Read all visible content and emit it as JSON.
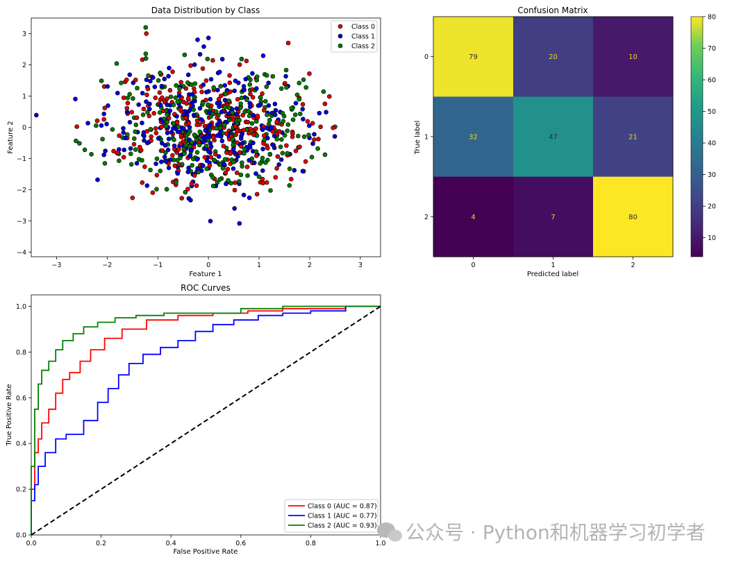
{
  "chart_data": [
    {
      "type": "scatter",
      "title": "Data Distribution by Class",
      "xlabel": "Feature 1",
      "ylabel": "Feature 2",
      "xlim": [
        -3.5,
        3.4
      ],
      "ylim": [
        -4.15,
        3.5
      ],
      "xticks": [
        -3,
        -2,
        -1,
        0,
        1,
        2,
        3
      ],
      "yticks": [
        -4,
        -3,
        -2,
        -1,
        0,
        1,
        2,
        3
      ],
      "legend_position": "top-right",
      "series": [
        {
          "name": "Class 0",
          "color": "#e00000",
          "count": 300
        },
        {
          "name": "Class 1",
          "color": "#0000e0",
          "count": 300
        },
        {
          "name": "Class 2",
          "color": "#007a00",
          "count": 300
        }
      ]
    },
    {
      "type": "heatmap",
      "title": "Confusion Matrix",
      "xlabel": "Predicted label",
      "ylabel": "True label",
      "x_categories": [
        "0",
        "1",
        "2"
      ],
      "y_categories": [
        "0",
        "1",
        "2"
      ],
      "values": [
        [
          79,
          20,
          10
        ],
        [
          32,
          47,
          21
        ],
        [
          4,
          7,
          80
        ]
      ],
      "colorbar_range": [
        4,
        80
      ],
      "colorbar_ticks": [
        10,
        20,
        30,
        40,
        50,
        60,
        70,
        80
      ],
      "colormap": "viridis"
    },
    {
      "type": "line",
      "title": "ROC Curves",
      "xlabel": "False Positive Rate",
      "ylabel": "True Positive Rate",
      "xlim": [
        0,
        1
      ],
      "ylim": [
        0,
        1.05
      ],
      "xticks": [
        0.0,
        0.2,
        0.4,
        0.6,
        0.8,
        1.0
      ],
      "yticks": [
        0.0,
        0.2,
        0.4,
        0.6,
        0.8,
        1.0
      ],
      "legend_position": "lower-right",
      "series": [
        {
          "name": "Class 0 (AUC = 0.87)",
          "color": "#ff0000",
          "x": [
            0,
            0.01,
            0.02,
            0.03,
            0.05,
            0.07,
            0.09,
            0.11,
            0.14,
            0.17,
            0.21,
            0.26,
            0.33,
            0.42,
            0.52,
            0.62,
            0.72,
            0.82,
            0.9,
            1.0
          ],
          "y": [
            0,
            0.2,
            0.36,
            0.42,
            0.49,
            0.55,
            0.62,
            0.68,
            0.71,
            0.76,
            0.81,
            0.86,
            0.9,
            0.94,
            0.96,
            0.97,
            0.98,
            0.99,
            0.99,
            1.0
          ]
        },
        {
          "name": "Class 1 (AUC = 0.77)",
          "color": "#0000ff",
          "x": [
            0,
            0.01,
            0.02,
            0.04,
            0.07,
            0.1,
            0.15,
            0.19,
            0.22,
            0.25,
            0.28,
            0.32,
            0.37,
            0.42,
            0.47,
            0.52,
            0.58,
            0.65,
            0.72,
            0.8,
            0.9,
            1.0
          ],
          "y": [
            0,
            0.15,
            0.22,
            0.3,
            0.36,
            0.42,
            0.44,
            0.5,
            0.58,
            0.64,
            0.7,
            0.75,
            0.79,
            0.82,
            0.85,
            0.89,
            0.92,
            0.94,
            0.96,
            0.97,
            0.98,
            1.0
          ]
        },
        {
          "name": "Class 2 (AUC = 0.93)",
          "color": "#008000",
          "x": [
            0,
            0.01,
            0.02,
            0.03,
            0.05,
            0.07,
            0.09,
            0.12,
            0.15,
            0.19,
            0.24,
            0.3,
            0.38,
            0.48,
            0.6,
            0.72,
            0.85,
            1.0
          ],
          "y": [
            0,
            0.3,
            0.55,
            0.66,
            0.72,
            0.76,
            0.81,
            0.85,
            0.88,
            0.91,
            0.93,
            0.95,
            0.96,
            0.97,
            0.97,
            0.99,
            1.0,
            1.0
          ]
        },
        {
          "name": "",
          "color": "#000000",
          "dashed": true,
          "x": [
            0,
            1
          ],
          "y": [
            0,
            1
          ]
        }
      ]
    }
  ],
  "watermark": "公众号 · Python和机器学习初学者"
}
